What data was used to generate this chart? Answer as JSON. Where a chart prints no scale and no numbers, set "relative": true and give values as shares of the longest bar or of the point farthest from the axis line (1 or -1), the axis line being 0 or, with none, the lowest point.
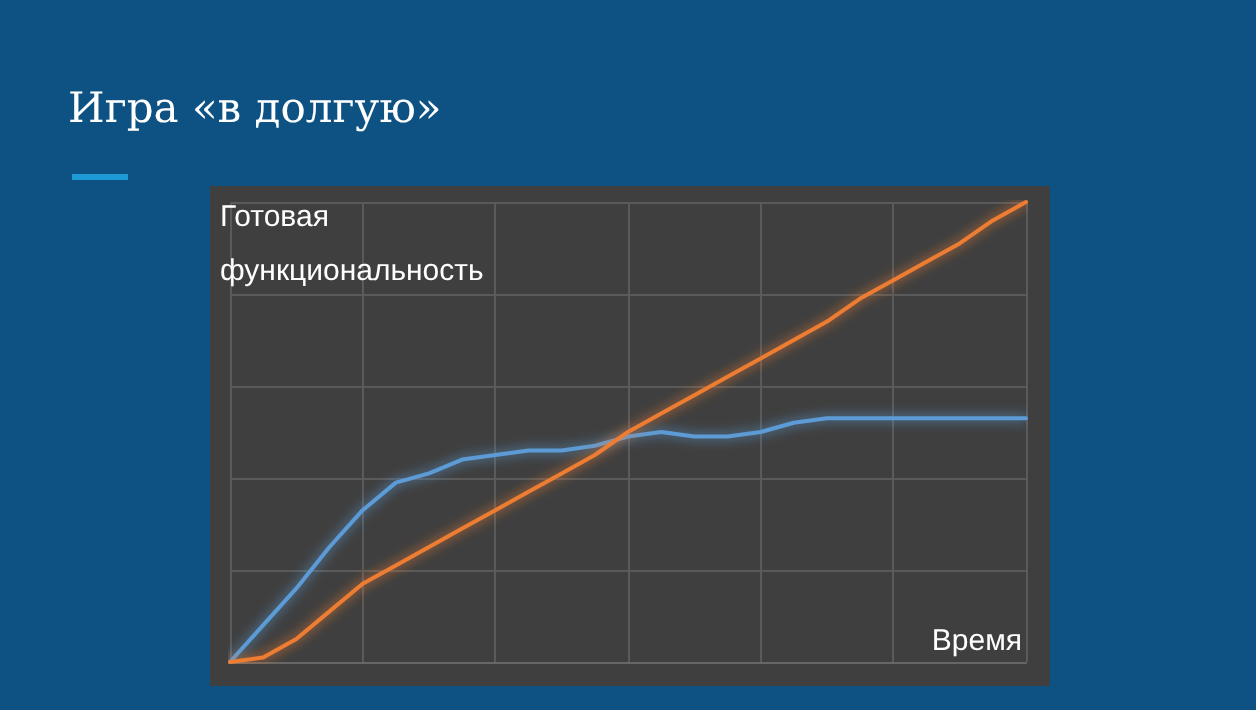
{
  "chart_data": {
    "type": "line",
    "title": "Игра «в долгую»",
    "ylabel": "Готовая функциональность",
    "xlabel": "Время",
    "relative": true,
    "grid": true,
    "marker": "none",
    "line_style": "solid",
    "categories": [
      null,
      null,
      null,
      null,
      null,
      null,
      null,
      null,
      null,
      null,
      null,
      null,
      null,
      null,
      null,
      null,
      null,
      null,
      null,
      null,
      null,
      null,
      null,
      null,
      null
    ],
    "series": [
      {
        "color": "#5b9bd5",
        "values": [
          0,
          0.08,
          0.16,
          0.25,
          0.33,
          0.39,
          0.41,
          0.44,
          0.45,
          0.46,
          0.46,
          0.47,
          0.49,
          0.5,
          0.49,
          0.49,
          0.5,
          0.52,
          0.53,
          0.53,
          0.53,
          0.53,
          0.53,
          0.53,
          0.53
        ]
      },
      {
        "color": "#ed7d31",
        "values": [
          0,
          0.01,
          0.05,
          0.11,
          0.17,
          0.21,
          0.25,
          0.29,
          0.33,
          0.37,
          0.41,
          0.45,
          0.5,
          0.54,
          0.58,
          0.62,
          0.66,
          0.7,
          0.74,
          0.79,
          0.83,
          0.87,
          0.91,
          0.96,
          1
        ]
      }
    ]
  }
}
